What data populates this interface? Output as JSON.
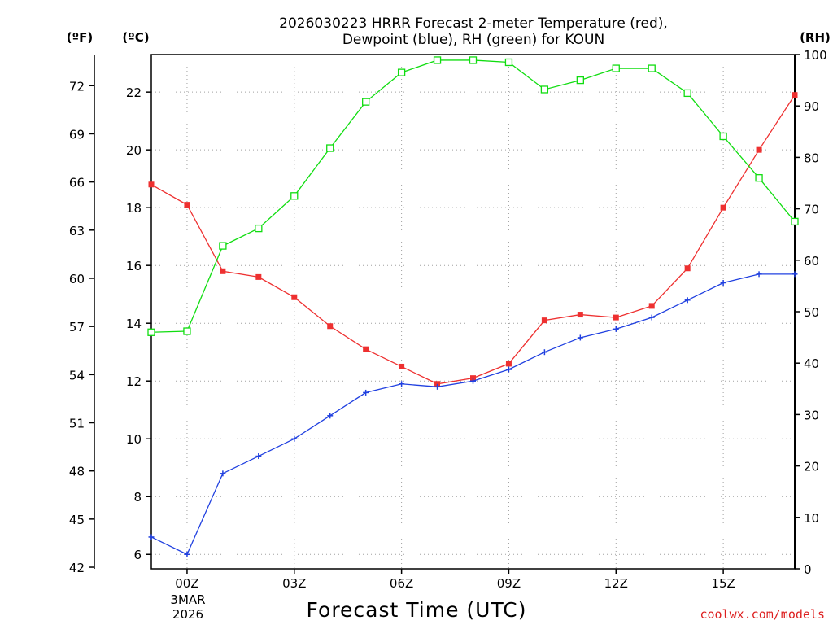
{
  "chart_data": {
    "type": "line",
    "title_line1": "2026030223 HRRR Forecast 2-meter Temperature (red),",
    "title_line2": "Dewpoint (blue), RH (green) for KOUN",
    "xlabel": "Forecast Time (UTC)",
    "credit": "coolwx.com/models",
    "left_axis_unit": "(ºF)",
    "mid_axis_unit": "(ºC)",
    "right_axis_unit": "(RH)",
    "date_label": [
      "3MAR",
      "2026"
    ],
    "x_hours": [
      -1,
      0,
      1,
      2,
      3,
      4,
      5,
      6,
      7,
      8,
      9,
      10,
      11,
      12,
      13,
      14,
      15,
      16,
      17
    ],
    "x_range": [
      -1,
      17
    ],
    "x_ticks": [
      {
        "hour": 0,
        "label": "00Z"
      },
      {
        "hour": 3,
        "label": "03Z"
      },
      {
        "hour": 6,
        "label": "06Z"
      },
      {
        "hour": 9,
        "label": "09Z"
      },
      {
        "hour": 12,
        "label": "12Z"
      },
      {
        "hour": 15,
        "label": "15Z"
      }
    ],
    "celsius_range": [
      5.5,
      23.3
    ],
    "celsius_ticks": [
      "6",
      "8",
      "10",
      "12",
      "14",
      "16",
      "18",
      "20",
      "22"
    ],
    "fahrenheit_ticks": [
      "42",
      "45",
      "48",
      "51",
      "54",
      "57",
      "60",
      "63",
      "66",
      "69",
      "72"
    ],
    "rh_range": [
      0,
      100
    ],
    "rh_ticks": [
      "0",
      "10",
      "20",
      "30",
      "40",
      "50",
      "60",
      "70",
      "80",
      "90",
      "100"
    ],
    "series": [
      {
        "name": "Temperature",
        "color": "#ee3030",
        "marker": "filled-square",
        "values": [
          18.8,
          18.1,
          15.8,
          15.6,
          14.9,
          13.9,
          13.1,
          12.5,
          11.9,
          12.1,
          12.6,
          14.1,
          14.3,
          14.2,
          14.6,
          15.9,
          18.0,
          20.0,
          21.9
        ]
      },
      {
        "name": "Dewpoint",
        "color": "#2040e0",
        "marker": "plus",
        "values": [
          6.6,
          6.0,
          8.8,
          9.4,
          10.0,
          10.8,
          11.6,
          11.9,
          11.8,
          12.0,
          12.4,
          13.0,
          13.5,
          13.8,
          14.2,
          14.8,
          15.4,
          15.7,
          15.7
        ]
      },
      {
        "name": "RH",
        "color": "#10dd10",
        "marker": "open-square",
        "values": [
          46.0,
          46.2,
          62.8,
          66.2,
          72.5,
          81.8,
          90.8,
          96.5,
          98.9,
          98.9,
          98.5,
          93.2,
          95.0,
          97.3,
          97.3,
          92.5,
          84.1,
          76.0,
          67.5
        ]
      }
    ]
  }
}
